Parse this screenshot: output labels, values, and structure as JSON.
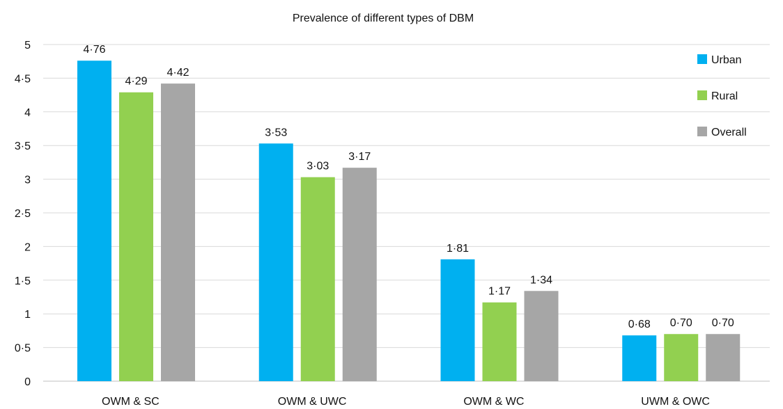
{
  "chart_data": {
    "type": "bar",
    "title": "Prevalence of different types of DBM",
    "xlabel": "",
    "ylabel": "",
    "ylim": [
      0,
      5
    ],
    "yticks": [
      "0",
      "0·5",
      "1",
      "1·5",
      "2",
      "2·5",
      "3",
      "3·5",
      "4",
      "4·5",
      "5"
    ],
    "grid": "horizontal",
    "legend_position": "top-right",
    "categories": [
      "OWM & SC",
      "OWM & UWC",
      "OWM & WC",
      "UWM & OWC"
    ],
    "series": [
      {
        "name": "Urban",
        "color": "#00b0f0",
        "values": [
          4.76,
          3.53,
          1.81,
          0.68
        ],
        "labels": [
          "4·76",
          "3·53",
          "1·81",
          "0·68"
        ]
      },
      {
        "name": "Rural",
        "color": "#92d050",
        "values": [
          4.29,
          3.03,
          1.17,
          0.7
        ],
        "labels": [
          "4·29",
          "3·03",
          "1·17",
          "0·70"
        ]
      },
      {
        "name": "Overall",
        "color": "#a6a6a6",
        "values": [
          4.42,
          3.17,
          1.34,
          0.7
        ],
        "labels": [
          "4·42",
          "3·17",
          "1·34",
          "0·70"
        ]
      }
    ]
  }
}
